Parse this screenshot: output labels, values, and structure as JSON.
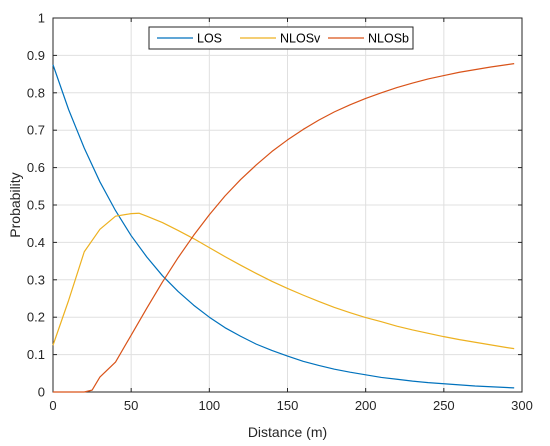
{
  "chart_data": {
    "type": "line",
    "title": "",
    "xlabel": "Distance (m)",
    "ylabel": "Probability",
    "xlim": [
      0,
      300
    ],
    "ylim": [
      0,
      1
    ],
    "xticks": [
      0,
      50,
      100,
      150,
      200,
      250,
      300
    ],
    "yticks": [
      0,
      0.1,
      0.2,
      0.3,
      0.4,
      0.5,
      0.6,
      0.7,
      0.8,
      0.9,
      1
    ],
    "grid": true,
    "legend": {
      "placement": "top-center",
      "orientation": "horizontal"
    },
    "series": [
      {
        "name": "LOS",
        "color": "#0072BD",
        "x": [
          0,
          10,
          20,
          30,
          40,
          50,
          60,
          70,
          80,
          90,
          100,
          110,
          120,
          130,
          140,
          150,
          160,
          170,
          180,
          190,
          200,
          210,
          220,
          230,
          240,
          250,
          260,
          270,
          280,
          290,
          295
        ],
        "y": [
          0.875,
          0.755,
          0.652,
          0.562,
          0.485,
          0.418,
          0.361,
          0.311,
          0.269,
          0.232,
          0.2,
          0.172,
          0.149,
          0.128,
          0.111,
          0.096,
          0.082,
          0.071,
          0.061,
          0.053,
          0.046,
          0.039,
          0.034,
          0.029,
          0.025,
          0.022,
          0.019,
          0.016,
          0.014,
          0.012,
          0.011
        ]
      },
      {
        "name": "NLOSv",
        "color": "#EDB120",
        "x": [
          0,
          10,
          20,
          30,
          40,
          50,
          55,
          60,
          70,
          80,
          90,
          100,
          110,
          120,
          130,
          140,
          150,
          160,
          170,
          180,
          190,
          200,
          210,
          220,
          230,
          240,
          250,
          260,
          270,
          280,
          290,
          295
        ],
        "y": [
          0.125,
          0.245,
          0.375,
          0.435,
          0.47,
          0.477,
          0.478,
          0.47,
          0.453,
          0.432,
          0.41,
          0.386,
          0.362,
          0.339,
          0.317,
          0.296,
          0.277,
          0.259,
          0.242,
          0.226,
          0.212,
          0.199,
          0.188,
          0.176,
          0.166,
          0.157,
          0.148,
          0.14,
          0.133,
          0.126,
          0.119,
          0.116
        ]
      },
      {
        "name": "NLOSb",
        "color": "#D95319",
        "x": [
          0,
          10,
          20,
          25,
          30,
          40,
          50,
          60,
          70,
          80,
          90,
          100,
          110,
          120,
          130,
          140,
          150,
          160,
          170,
          180,
          190,
          200,
          210,
          220,
          230,
          240,
          250,
          260,
          270,
          280,
          290,
          295
        ],
        "y": [
          0.0,
          0.0,
          0.0,
          0.005,
          0.04,
          0.08,
          0.152,
          0.224,
          0.294,
          0.359,
          0.419,
          0.474,
          0.524,
          0.568,
          0.607,
          0.643,
          0.674,
          0.702,
          0.727,
          0.749,
          0.768,
          0.785,
          0.8,
          0.814,
          0.826,
          0.837,
          0.846,
          0.855,
          0.862,
          0.869,
          0.875,
          0.878
        ]
      }
    ]
  }
}
